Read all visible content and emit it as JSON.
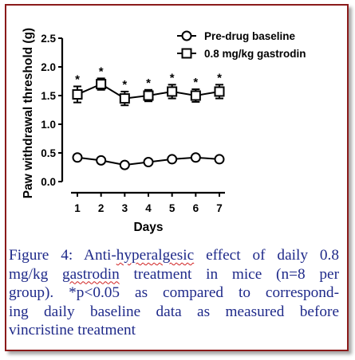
{
  "chart_data": {
    "type": "line",
    "xlabel": "Days",
    "ylabel": "Paw withdrawal threshold (g)",
    "x": [
      1,
      2,
      3,
      4,
      5,
      6,
      7
    ],
    "xticks": [
      "1",
      "2",
      "3",
      "4",
      "5",
      "6",
      "7"
    ],
    "yticks": [
      "0.0",
      "0.5",
      "1.0",
      "1.5",
      "2.0",
      "2.5"
    ],
    "ylim": [
      0,
      2.5
    ],
    "xlim": [
      0.5,
      7.5
    ],
    "legend_position": "top-right",
    "series": [
      {
        "name": "Pre-drug baseline",
        "marker": "circle",
        "values": [
          0.42,
          0.37,
          0.29,
          0.34,
          0.39,
          0.42,
          0.39
        ],
        "errors": [
          0.02,
          0.02,
          0.02,
          0.02,
          0.02,
          0.02,
          0.02
        ],
        "significance": [
          "",
          "",
          "",
          "",
          "",
          "",
          ""
        ]
      },
      {
        "name": "0.8 mg/kg gastrodin",
        "marker": "square",
        "values": [
          1.52,
          1.7,
          1.45,
          1.5,
          1.57,
          1.5,
          1.57
        ],
        "errors": [
          0.14,
          0.1,
          0.12,
          0.1,
          0.12,
          0.11,
          0.12
        ],
        "significance": [
          "*",
          "*",
          "*",
          "*",
          "*",
          "*",
          "*"
        ]
      }
    ]
  },
  "caption": {
    "lines": [
      "Figure 4: Anti-hyperalgesic effect of daily 0.8",
      "mg/kg gastrodin treatment in mice (n=8 per",
      "group). *p<0.05 as compared to correspond-",
      "ing daily baseline data as measured before",
      "vincristine treatment"
    ]
  }
}
